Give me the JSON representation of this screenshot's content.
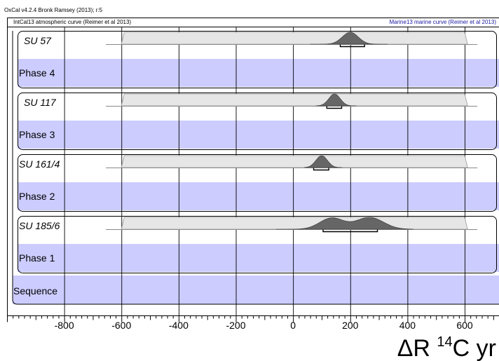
{
  "header": {
    "software": "OxCal v4.2.4 Bronk Ramsey (2013); r:5",
    "atmospheric_curve": "IntCal13 atmospheric curve (Reimer et al 2013)",
    "marine_curve": "Marine13 marine curve (Reimer et al 2013)"
  },
  "chart_data": {
    "type": "area",
    "subtype": "oxcal-multiplot",
    "xlim": [
      -1000,
      720
    ],
    "x_ticks": [
      -800,
      -600,
      -400,
      -200,
      0,
      200,
      400,
      600
    ],
    "x_tick_labels": [
      "-800",
      "-600",
      "-400",
      "-200",
      "0",
      "200",
      "400",
      "600"
    ],
    "xlabel": "ΔR ¹⁴C yr",
    "xlabel_parts": {
      "main": "ΔR ",
      "sup": "14",
      "tail": "C yr"
    },
    "grid": true,
    "prior": {
      "start": -600,
      "plateau_start": -590,
      "plateau_end": 600,
      "end": 610
    },
    "stub_line": [
      -620,
      620
    ],
    "rows": [
      {
        "kind": "sample",
        "label": "SU 57",
        "posterior": [
          {
            "mu": 200,
            "sigma": 28,
            "amp": 1.0
          }
        ],
        "tail": [
          60,
          330
        ],
        "range": [
          165,
          250
        ]
      },
      {
        "kind": "phase",
        "label": "Phase 4"
      },
      {
        "kind": "sample",
        "label": "SU 117",
        "posterior": [
          {
            "mu": 145,
            "sigma": 20,
            "amp": 1.0
          }
        ],
        "tail": [
          80,
          220
        ],
        "range": [
          118,
          170
        ]
      },
      {
        "kind": "phase",
        "label": "Phase 3"
      },
      {
        "kind": "sample",
        "label": "SU 161/4",
        "posterior": [
          {
            "mu": 100,
            "sigma": 20,
            "amp": 1.0
          }
        ],
        "tail": [
          40,
          170
        ],
        "range": [
          72,
          125
        ]
      },
      {
        "kind": "phase",
        "label": "Phase 2"
      },
      {
        "kind": "sample",
        "label": "SU 185/6",
        "posterior": [
          {
            "mu": 135,
            "sigma": 42,
            "amp": 0.85
          },
          {
            "mu": 268,
            "sigma": 48,
            "amp": 0.9
          }
        ],
        "tail": [
          -60,
          420
        ],
        "range": [
          105,
          295
        ]
      },
      {
        "kind": "phase",
        "label": "Phase 1"
      },
      {
        "kind": "sequence",
        "label": "Sequence"
      }
    ],
    "colors": {
      "phase_fill": "#ccccff",
      "prior_fill": "#e6e6e6",
      "posterior_fill": "#666666",
      "frame": "#000000"
    }
  }
}
